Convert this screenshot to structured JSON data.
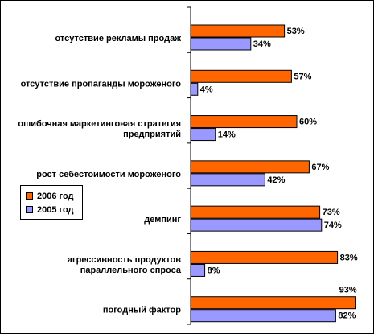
{
  "chart_data": {
    "type": "bar",
    "orientation": "horizontal",
    "categories": [
      [
        "отсутствие рекламы продаж"
      ],
      [
        "отсутствие пропаганды мороженого"
      ],
      [
        "ошибочная маркетинговая стратегия",
        "предприятий"
      ],
      [
        "рост себестоимости мороженого"
      ],
      [
        "демпинг"
      ],
      [
        "агрессивность продуктов",
        "параллельного спроса"
      ],
      [
        "погодный фактор"
      ]
    ],
    "series": [
      {
        "name": "2006 год",
        "color": "#FF6600",
        "values": [
          53,
          57,
          60,
          67,
          73,
          83,
          93
        ],
        "labels": [
          "53%",
          "57%",
          "60%",
          "67%",
          "73%",
          "83%",
          "93%"
        ]
      },
      {
        "name": "2005 год",
        "color": "#9999FF",
        "values": [
          34,
          4,
          14,
          42,
          74,
          8,
          82
        ],
        "labels": [
          "34%",
          "4%",
          "14%",
          "42%",
          "74%",
          "8%",
          "82%"
        ]
      }
    ],
    "xlim": [
      0,
      100
    ],
    "legend_position": "left"
  }
}
